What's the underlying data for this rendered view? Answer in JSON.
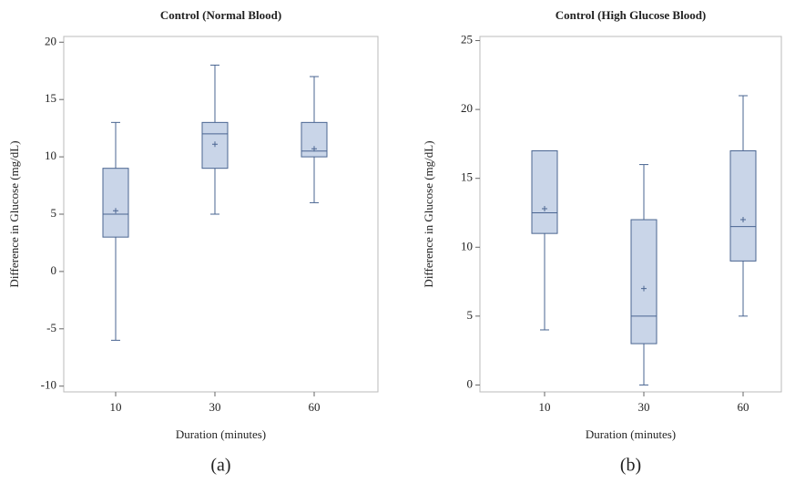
{
  "chart_data": [
    {
      "type": "box",
      "title": "Control (Normal Blood)",
      "x_label": "Duration (minutes)",
      "y_label": "Difference in Glucose (mg/dL)",
      "caption": "(a)",
      "categories": [
        "10",
        "30",
        "60"
      ],
      "min": [
        -6,
        5,
        6
      ],
      "q1": [
        3,
        9,
        10
      ],
      "median": [
        5,
        12,
        10.5
      ],
      "q3": [
        9,
        13,
        13
      ],
      "max": [
        13,
        18,
        17
      ],
      "mean": [
        5.3,
        11.1,
        10.7
      ],
      "color": "#c9d5e8",
      "line_color": "#4a6591",
      "ylim": [
        -10.5,
        20.5
      ],
      "yticks": [
        -10,
        -5,
        0,
        5,
        10,
        15,
        20
      ]
    },
    {
      "type": "box",
      "title": "Control (High Glucose Blood)",
      "x_label": "Duration (minutes)",
      "y_label": "Difference in Glucose (mg/dL)",
      "caption": "(b)",
      "categories": [
        "10",
        "30",
        "60"
      ],
      "min": [
        4,
        0,
        5
      ],
      "q1": [
        11,
        3,
        9
      ],
      "median": [
        12.5,
        5,
        11.5
      ],
      "q3": [
        17,
        12,
        17
      ],
      "max": [
        17,
        16,
        21
      ],
      "mean": [
        12.8,
        7,
        12
      ],
      "color": "#c9d5e8",
      "line_color": "#4a6591",
      "ylim": [
        -0.5,
        25.3
      ],
      "yticks": [
        0,
        5,
        10,
        15,
        20,
        25
      ]
    }
  ]
}
